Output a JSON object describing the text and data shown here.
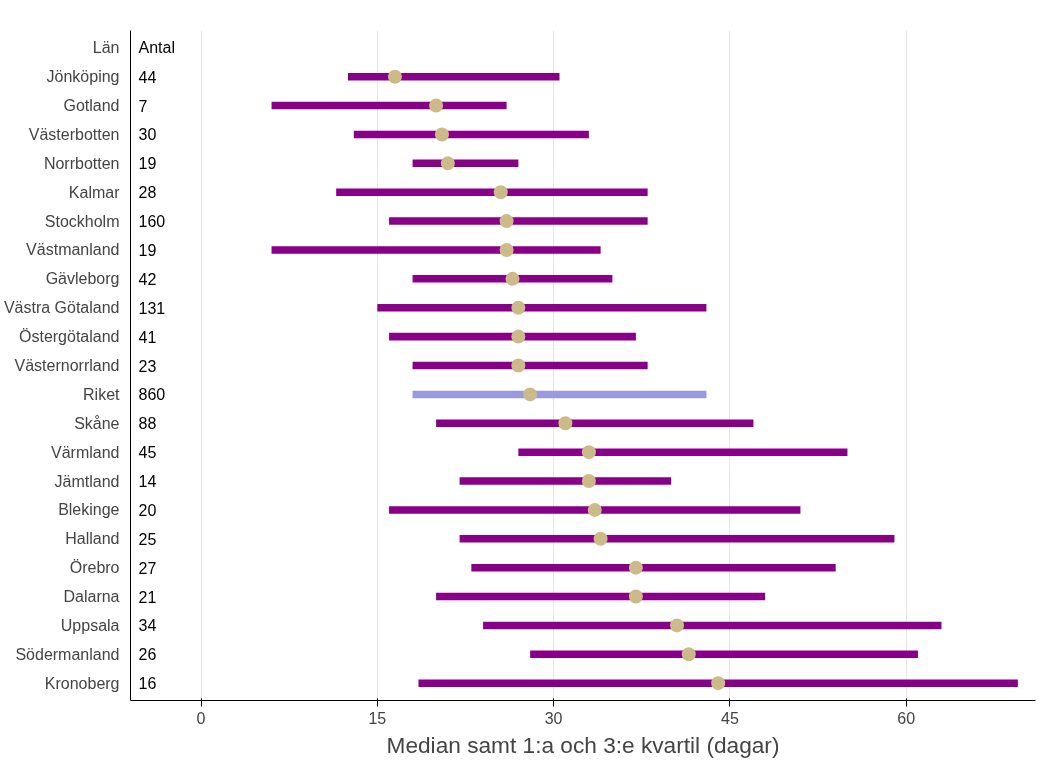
{
  "chart_data": {
    "type": "bar",
    "orientation": "horizontal",
    "xlabel": "Median samt 1:a och 3:e kvartil (dagar)",
    "ylabel": "Län",
    "categories": [
      "Jönköping",
      "Gotland",
      "Västerbotten",
      "Norrbotten",
      "Kalmar",
      "Stockholm",
      "Västmanland",
      "Gävleborg",
      "Västra Götaland",
      "Östergötaland",
      "Västernorrland",
      "Riket",
      "Skåne",
      "Värmland",
      "Jämtland",
      "Blekinge",
      "Halland",
      "Örebro",
      "Dalarna",
      "Uppsala",
      "Södermanland",
      "Kronoberg"
    ],
    "series": [
      {
        "base": [
          12.5,
          6,
          13,
          18,
          11.5,
          16,
          6,
          18,
          15,
          16,
          18,
          18,
          20,
          27,
          22,
          16,
          22,
          23,
          20,
          24,
          28,
          18.5
        ],
        "values": [
          18,
          20,
          20,
          9,
          26.5,
          22,
          28,
          17,
          28,
          21,
          20,
          25,
          27,
          28,
          18,
          35,
          37,
          31,
          28,
          39,
          33,
          51
        ],
        "colors": [
          "#880088",
          "#880088",
          "#880088",
          "#880088",
          "#880088",
          "#880088",
          "#880088",
          "#880088",
          "#880088",
          "#880088",
          "#880088",
          "#9999dd",
          "#880088",
          "#880088",
          "#880088",
          "#880088",
          "#880088",
          "#880088",
          "#880088",
          "#880088",
          "#880088",
          "#880088"
        ]
      },
      {
        "type": "scatter",
        "marker": "circle",
        "color": "#ccbb88",
        "x": [
          "Jönköping",
          "Gotland",
          "Västerbotten",
          "Norrbotten",
          "Kalmar",
          "Stockholm",
          "Västmanland",
          "Gävleborg",
          "Västra Götaland",
          "Östergötaland",
          "Västernorrland",
          "Riket",
          "Skåne",
          "Värmland",
          "Jämtland",
          "Blekinge",
          "Halland",
          "Örebro",
          "Dalarna",
          "Uppsala",
          "Södermanland",
          "Kronoberg"
        ],
        "values": [
          16.5,
          20,
          20.5,
          21,
          25.5,
          26,
          26,
          26.5,
          27,
          27,
          27,
          28,
          31,
          33,
          33,
          33.5,
          34,
          37,
          37,
          40.5,
          41.5,
          44
        ]
      }
    ],
    "xlim": [
      -6,
      71
    ],
    "xticks": [
      0,
      15,
      30,
      45,
      60
    ],
    "grid": "x",
    "annotations": [
      "Antal",
      "44",
      "7",
      "30",
      "19",
      "28",
      "160",
      "19",
      "42",
      "131",
      "41",
      "23",
      "860",
      "88",
      "45",
      "14",
      "20",
      "25",
      "27",
      "21",
      "34",
      "26",
      "16"
    ]
  }
}
